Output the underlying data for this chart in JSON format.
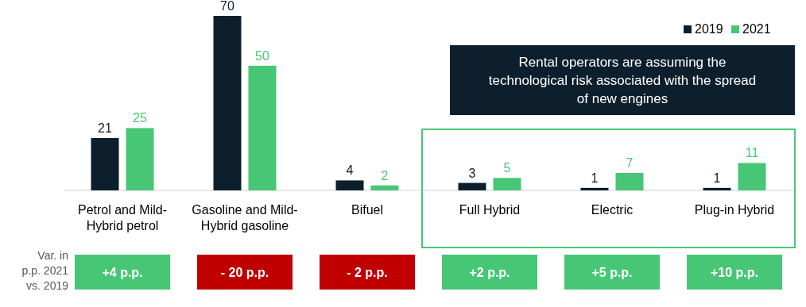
{
  "chart_data": {
    "type": "bar",
    "categories": [
      "Petrol and Mild-Hybrid petrol",
      "Gasoline and Mild-Hybrid gasoline",
      "Bifuel",
      "Full Hybrid",
      "Electric",
      "Plug-in Hybrid"
    ],
    "series": [
      {
        "name": "2019",
        "color": "#0d1f2d",
        "values": [
          21,
          70,
          4,
          3,
          1,
          1
        ]
      },
      {
        "name": "2021",
        "color": "#47c776",
        "values": [
          25,
          50,
          2,
          5,
          7,
          11
        ]
      }
    ],
    "data_labels": true,
    "legend": "top right",
    "grid": false,
    "annotations": [
      "Rental operators are assuming the technological risk associated with the spread of new engines",
      "Var. in p.p. 2021 vs. 2019",
      "+4 p.p.",
      "- 20 p.p.",
      "- 2 p.p.",
      "+2 p.p.",
      "+5 p.p.",
      "+10 p.p."
    ]
  }
}
